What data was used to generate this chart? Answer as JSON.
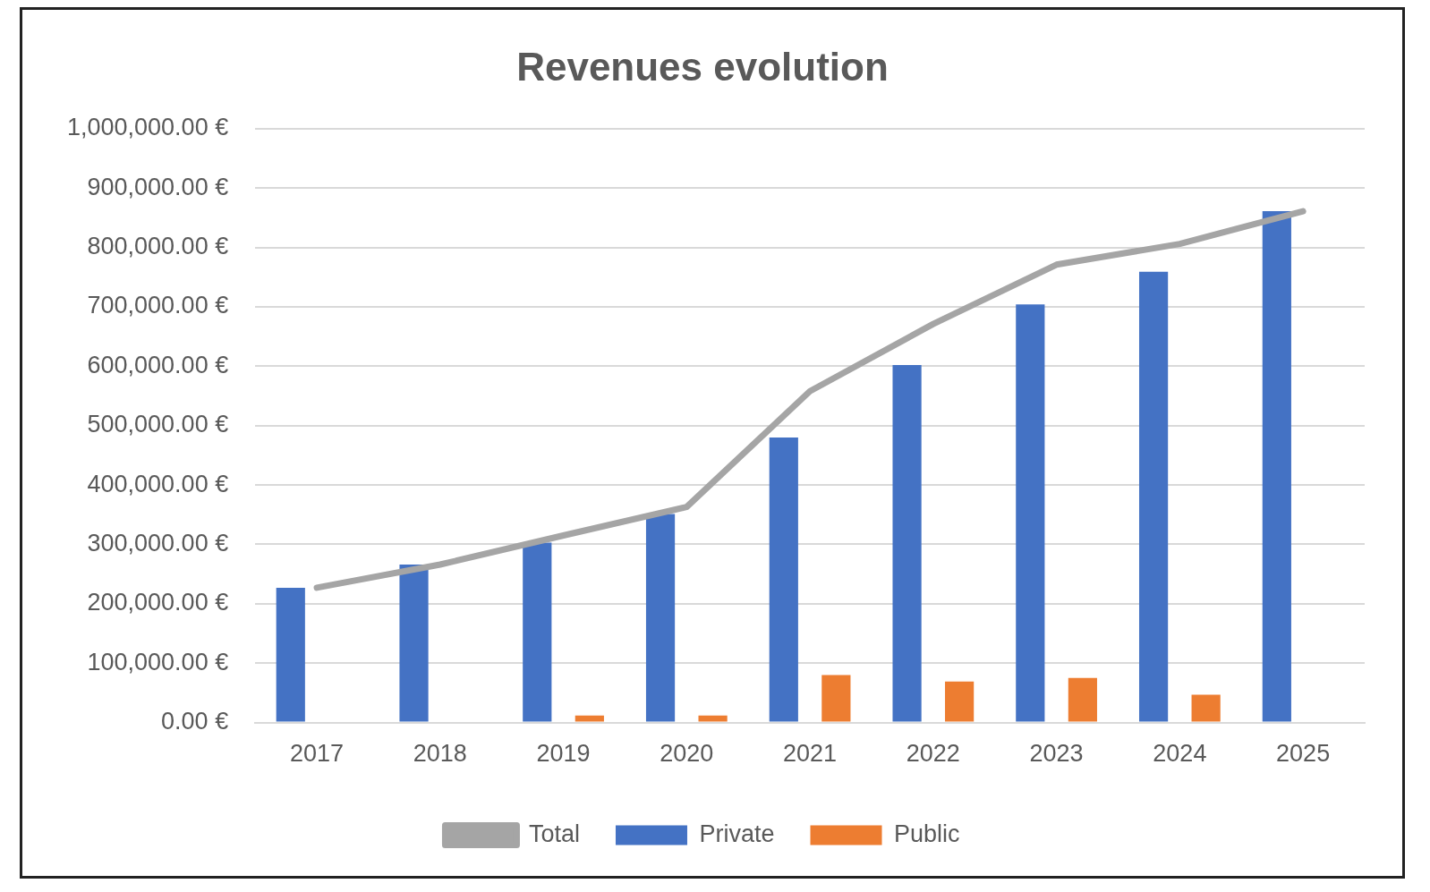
{
  "chart_data": {
    "type": "bar",
    "title": "Revenues evolution",
    "categories": [
      "2017",
      "2018",
      "2019",
      "2020",
      "2021",
      "2022",
      "2023",
      "2024",
      "2025"
    ],
    "series": [
      {
        "name": "Private",
        "color": "#4472c4",
        "values": [
          227000,
          266000,
          303000,
          351000,
          480000,
          602000,
          704000,
          759000,
          861000
        ]
      },
      {
        "name": "Public",
        "color": "#ed7d31",
        "values": [
          0,
          0,
          12000,
          12000,
          80000,
          69000,
          75000,
          47000,
          0
        ]
      },
      {
        "name": "Total",
        "type": "line",
        "color": "#a5a5a5",
        "values": [
          227000,
          266000,
          315000,
          363000,
          558000,
          671000,
          771000,
          806000,
          861000
        ]
      }
    ],
    "ylim": [
      0,
      1000000
    ],
    "yticks": [
      {
        "value": 0,
        "label": "0.00 €"
      },
      {
        "value": 100000,
        "label": "100,000.00 €"
      },
      {
        "value": 200000,
        "label": "200,000.00 €"
      },
      {
        "value": 300000,
        "label": "300,000.00 €"
      },
      {
        "value": 400000,
        "label": "400,000.00 €"
      },
      {
        "value": 500000,
        "label": "500,000.00 €"
      },
      {
        "value": 600000,
        "label": "600,000.00 €"
      },
      {
        "value": 700000,
        "label": "700,000.00 €"
      },
      {
        "value": 800000,
        "label": "800,000.00 €"
      },
      {
        "value": 900000,
        "label": "900,000.00 €"
      },
      {
        "value": 1000000,
        "label": "1,000,000.00 €"
      }
    ],
    "grid": "y",
    "legend": "bottom",
    "marker": "none",
    "line_style": "solid"
  }
}
